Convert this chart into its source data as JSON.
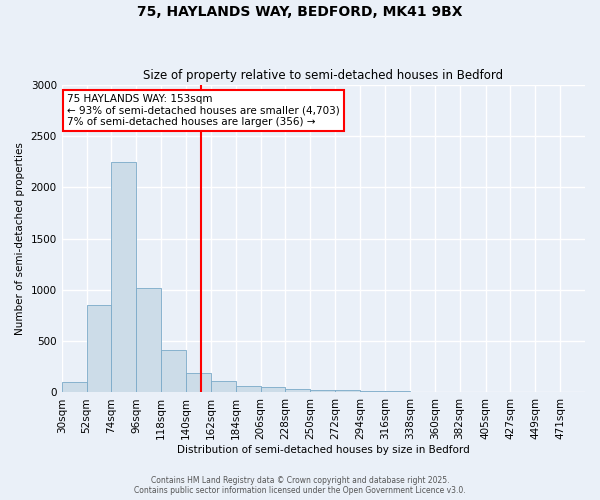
{
  "title_line1": "75, HAYLANDS WAY, BEDFORD, MK41 9BX",
  "title_line2": "Size of property relative to semi-detached houses in Bedford",
  "xlabel": "Distribution of semi-detached houses by size in Bedford",
  "ylabel": "Number of semi-detached properties",
  "bar_color": "#ccdce8",
  "bar_edge_color": "#7aaac8",
  "vline_color": "red",
  "vline_x": 153,
  "categories": [
    "30sqm",
    "52sqm",
    "74sqm",
    "96sqm",
    "118sqm",
    "140sqm",
    "162sqm",
    "184sqm",
    "206sqm",
    "228sqm",
    "250sqm",
    "272sqm",
    "294sqm",
    "316sqm",
    "338sqm",
    "360sqm",
    "382sqm",
    "405sqm",
    "427sqm",
    "449sqm",
    "471sqm"
  ],
  "bin_edges": [
    30,
    52,
    74,
    96,
    118,
    140,
    162,
    184,
    206,
    228,
    250,
    272,
    294,
    316,
    338,
    360,
    382,
    405,
    427,
    449,
    471,
    493
  ],
  "values": [
    100,
    850,
    2250,
    1020,
    410,
    190,
    110,
    65,
    50,
    35,
    25,
    20,
    15,
    10,
    8,
    5,
    5,
    4,
    3,
    2,
    2
  ],
  "ylim": [
    0,
    3000
  ],
  "yticks": [
    0,
    500,
    1000,
    1500,
    2000,
    2500,
    3000
  ],
  "annotation_title": "75 HAYLANDS WAY: 153sqm",
  "annotation_line2": "← 93% of semi-detached houses are smaller (4,703)",
  "annotation_line3": "7% of semi-detached houses are larger (356) →",
  "annotation_box_color": "white",
  "annotation_box_edgecolor": "red",
  "footer_line1": "Contains HM Land Registry data © Crown copyright and database right 2025.",
  "footer_line2": "Contains public sector information licensed under the Open Government Licence v3.0.",
  "background_color": "#eaf0f8",
  "grid_color": "white"
}
